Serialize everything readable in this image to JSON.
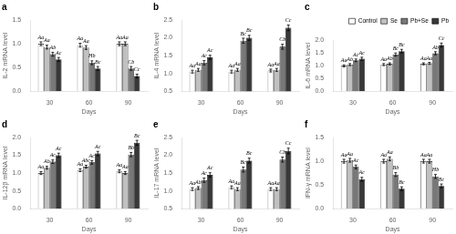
{
  "chart_data": [
    {
      "type": "bar",
      "title": "a",
      "xlabel": "Days",
      "ylabel": "IL-2 mRNA level",
      "categories": [
        "30",
        "60",
        "90"
      ],
      "series": [
        {
          "name": "Control",
          "color": "#ffffff",
          "values": [
            1.0,
            0.97,
            1.0
          ],
          "errors": [
            0.04,
            0.04,
            0.04
          ],
          "annotations": [
            "Aa",
            "Aa",
            "Aa"
          ]
        },
        {
          "name": "Se",
          "color": "#c0c0c0",
          "values": [
            0.93,
            0.92,
            1.0
          ],
          "errors": [
            0.04,
            0.04,
            0.04
          ],
          "annotations": [
            "Aa",
            "Aa",
            "Aa"
          ]
        },
        {
          "name": "Pb+Se",
          "color": "#787878",
          "values": [
            0.78,
            0.6,
            0.48
          ],
          "errors": [
            0.04,
            0.04,
            0.04
          ],
          "annotations": [
            "Ab",
            "Hb",
            "Cb"
          ]
        },
        {
          "name": "Pb",
          "color": "#383838",
          "values": [
            0.67,
            0.48,
            0.32
          ],
          "errors": [
            0.04,
            0.04,
            0.04
          ],
          "annotations": [
            "Ac",
            "Bc",
            "Cc"
          ]
        }
      ],
      "ylim": [
        0.0,
        1.5
      ],
      "yticks": [
        {
          "value": 0.0,
          "label": "0.0"
        },
        0.5,
        {
          "value": 1.0,
          "label": "1.0"
        },
        1.5
      ],
      "grid": false
    },
    {
      "type": "bar",
      "title": "b",
      "xlabel": "Days",
      "ylabel": "IL-4 mRNA level",
      "categories": [
        "30",
        "60",
        "90"
      ],
      "series": [
        {
          "name": "Control",
          "color": "#ffffff",
          "values": [
            1.05,
            1.05,
            1.08
          ],
          "errors": [
            0.04,
            0.04,
            0.04
          ],
          "annotations": [
            "Aa",
            "Aa",
            "Aa"
          ]
        },
        {
          "name": "Se",
          "color": "#c0c0c0",
          "values": [
            1.1,
            1.1,
            1.1
          ],
          "errors": [
            0.04,
            0.04,
            0.04
          ],
          "annotations": [
            "Aa",
            "Aa",
            "Aa"
          ]
        },
        {
          "name": "Pb+Se",
          "color": "#787878",
          "values": [
            1.3,
            1.92,
            1.75
          ],
          "errors": [
            0.06,
            0.07,
            0.07
          ],
          "annotations": [
            "Ac",
            "Bc",
            "Cb"
          ]
        },
        {
          "name": "Pb",
          "color": "#383838",
          "values": [
            1.45,
            2.0,
            2.28
          ],
          "errors": [
            0.06,
            0.07,
            0.08
          ],
          "annotations": [
            "Ac",
            "Bc",
            "Cc"
          ]
        }
      ],
      "ylim": [
        0.5,
        2.5
      ],
      "yticks": [
        0.5,
        {
          "value": 1.0,
          "label": "1.0"
        },
        1.5,
        {
          "value": 2.0,
          "label": "2.0"
        },
        2.5
      ],
      "grid": false
    },
    {
      "type": "bar",
      "title": "c",
      "xlabel": "Days",
      "ylabel": "IL-6 mRNA level",
      "categories": [
        "30",
        "60",
        "90"
      ],
      "series": [
        {
          "name": "Control",
          "color": "#ffffff",
          "values": [
            1.0,
            1.05,
            1.08
          ],
          "errors": [
            0.04,
            0.04,
            0.04
          ],
          "annotations": [
            "Aa",
            "Aa",
            "Aa"
          ]
        },
        {
          "name": "Se",
          "color": "#c0c0c0",
          "values": [
            1.05,
            1.08,
            1.1
          ],
          "errors": [
            0.04,
            0.04,
            0.04
          ],
          "annotations": [
            "Ab",
            "Ab",
            "Aa"
          ]
        },
        {
          "name": "Pb+Se",
          "color": "#787878",
          "values": [
            1.22,
            1.45,
            1.5
          ],
          "errors": [
            0.05,
            0.06,
            0.06
          ],
          "annotations": [
            "Ac",
            "Bc",
            "Ab"
          ]
        },
        {
          "name": "Pb",
          "color": "#383838",
          "values": [
            1.28,
            1.58,
            1.82
          ],
          "errors": [
            0.06,
            0.07,
            0.08
          ],
          "annotations": [
            "Ac",
            "Bc",
            "Cc"
          ]
        }
      ],
      "ylim": [
        0.0,
        2.0
      ],
      "yticks": [
        {
          "value": 0.0,
          "label": "0.0"
        },
        0.5,
        {
          "value": 1.0,
          "label": "1.0"
        },
        1.5,
        {
          "value": 2.0,
          "label": "2.0"
        }
      ],
      "grid": false,
      "legend": "upper right"
    },
    {
      "type": "bar",
      "title": "d",
      "xlabel": "Days",
      "ylabel": "IL-12β mRNA level",
      "categories": [
        "30",
        "60",
        "90"
      ],
      "series": [
        {
          "name": "Control",
          "color": "#ffffff",
          "values": [
            1.0,
            1.08,
            1.05
          ],
          "errors": [
            0.04,
            0.04,
            0.04
          ],
          "annotations": [
            "Aa",
            "Aa",
            "Aa"
          ]
        },
        {
          "name": "Se",
          "color": "#c0c0c0",
          "values": [
            1.15,
            1.18,
            1.0
          ],
          "errors": [
            0.04,
            0.04,
            0.04
          ],
          "annotations": [
            "Ab",
            "Abc",
            "Aa"
          ]
        },
        {
          "name": "Pb+Se",
          "color": "#787878",
          "values": [
            1.32,
            1.3,
            1.52
          ],
          "errors": [
            0.05,
            0.05,
            0.06
          ],
          "annotations": [
            "Ac",
            "Ac",
            "Bb"
          ]
        },
        {
          "name": "Pb",
          "color": "#383838",
          "values": [
            1.5,
            1.55,
            1.85
          ],
          "errors": [
            0.06,
            0.06,
            0.07
          ],
          "annotations": [
            "Ac",
            "Ac",
            "Bc"
          ]
        }
      ],
      "ylim": [
        0.0,
        2.0
      ],
      "yticks": [
        {
          "value": 0.0,
          "label": "0.0"
        },
        0.5,
        {
          "value": 1.0,
          "label": "1.0"
        },
        1.5,
        {
          "value": 2.0,
          "label": "2.0"
        }
      ],
      "grid": false
    },
    {
      "type": "bar",
      "title": "e",
      "xlabel": "Days",
      "ylabel": "IL-17 mRNA level",
      "categories": [
        "30",
        "60",
        "90"
      ],
      "series": [
        {
          "name": "Control",
          "color": "#ffffff",
          "values": [
            1.05,
            1.1,
            1.05
          ],
          "errors": [
            0.04,
            0.04,
            0.04
          ],
          "annotations": [
            "Aa",
            "Aa",
            "Aa"
          ]
        },
        {
          "name": "Se",
          "color": "#c0c0c0",
          "values": [
            1.08,
            1.05,
            1.05
          ],
          "errors": [
            0.04,
            0.04,
            0.04
          ],
          "annotations": [
            "Ab",
            "Aa",
            "Aa"
          ]
        },
        {
          "name": "Pb+Se",
          "color": "#787878",
          "values": [
            1.3,
            1.6,
            1.88
          ],
          "errors": [
            0.06,
            0.07,
            0.07
          ],
          "annotations": [
            "Ac",
            "Bc",
            "Cb"
          ]
        },
        {
          "name": "Pb",
          "color": "#383838",
          "values": [
            1.45,
            1.85,
            2.12
          ],
          "errors": [
            0.06,
            0.07,
            0.08
          ],
          "annotations": [
            "Ac",
            "Bc",
            "Cc"
          ]
        }
      ],
      "ylim": [
        0.5,
        2.5
      ],
      "yticks": [
        0.5,
        {
          "value": 1.0,
          "label": "1.0"
        },
        1.5,
        {
          "value": 2.0,
          "label": "2.0"
        },
        2.5
      ],
      "grid": false
    },
    {
      "type": "bar",
      "title": "f",
      "xlabel": "Days",
      "ylabel": "IFN-γ mRNA level",
      "categories": [
        "30",
        "60",
        "90"
      ],
      "series": [
        {
          "name": "Control",
          "color": "#ffffff",
          "values": [
            1.0,
            1.0,
            1.0
          ],
          "errors": [
            0.04,
            0.04,
            0.04
          ],
          "annotations": [
            "Aa",
            "Aa",
            "Aa"
          ]
        },
        {
          "name": "Se",
          "color": "#c0c0c0",
          "values": [
            1.02,
            1.05,
            1.0
          ],
          "errors": [
            0.04,
            0.04,
            0.04
          ],
          "annotations": [
            "Aa",
            "Aa",
            "Aa"
          ]
        },
        {
          "name": "Pb+Se",
          "color": "#787878",
          "values": [
            0.88,
            0.72,
            0.68
          ],
          "errors": [
            0.04,
            0.04,
            0.04
          ],
          "annotations": [
            "Ac",
            "Bb",
            "Hb"
          ]
        },
        {
          "name": "Pb",
          "color": "#383838",
          "values": [
            0.62,
            0.42,
            0.48
          ],
          "errors": [
            0.04,
            0.04,
            0.04
          ],
          "annotations": [
            "Ac",
            "Bc",
            "Bc"
          ]
        }
      ],
      "ylim": [
        0.0,
        1.5
      ],
      "yticks": [
        {
          "value": 0.0,
          "label": "0.0"
        },
        0.5,
        {
          "value": 1.0,
          "label": "1.0"
        },
        1.5
      ],
      "grid": false
    }
  ]
}
